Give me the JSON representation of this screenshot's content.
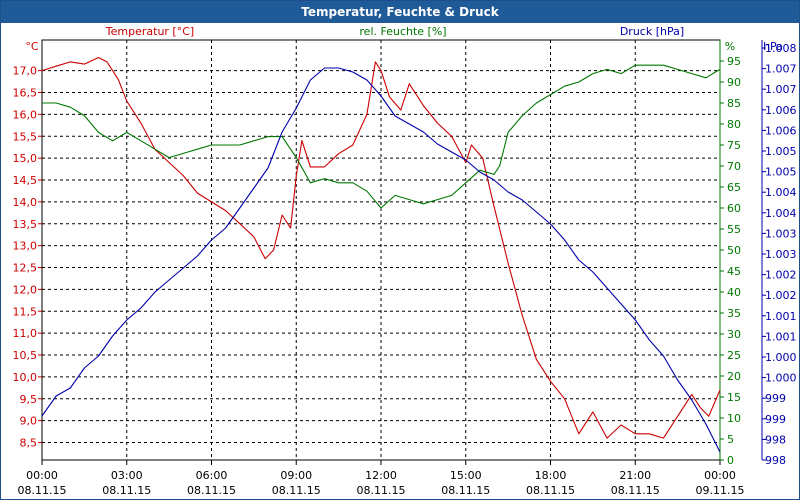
{
  "window": {
    "title": "Temperatur, Feuchte & Druck"
  },
  "colors": {
    "temperature": "#cc0000",
    "humidity": "#007700",
    "pressure": "#0000aa",
    "titlebar": "#1f5a99"
  },
  "chart_data": {
    "type": "line",
    "title": "Temperatur, Feuchte & Druck",
    "x_ticks": [
      {
        "time": "00:00",
        "date": "08.11.15"
      },
      {
        "time": "03:00",
        "date": "08.11.15"
      },
      {
        "time": "06:00",
        "date": "08.11.15"
      },
      {
        "time": "09:00",
        "date": "08.11.15"
      },
      {
        "time": "12:00",
        "date": "08.11.15"
      },
      {
        "time": "15:00",
        "date": "08.11.15"
      },
      {
        "time": "18:00",
        "date": "08.11.15"
      },
      {
        "time": "21:00",
        "date": "08.11.15"
      },
      {
        "time": "00:00",
        "date": "09.11.15"
      }
    ],
    "xlim_hours": [
      0,
      24
    ],
    "axes": {
      "temperature": {
        "label": "Temperatur [°C]",
        "unit": "°C",
        "range": [
          8.1,
          17.7
        ],
        "ticks": [
          "17,0",
          "16,5",
          "16,0",
          "15,5",
          "15,0",
          "14,5",
          "14,0",
          "13,5",
          "13,0",
          "12,5",
          "12,0",
          "11,5",
          "11,0",
          "10,5",
          "10,0",
          "9,5",
          "9,0",
          "8,5"
        ]
      },
      "humidity": {
        "label": "rel. Feuchte [%]",
        "unit": "%",
        "range": [
          0,
          100
        ],
        "ticks": [
          "95",
          "90",
          "85",
          "80",
          "75",
          "70",
          "65",
          "60",
          "55",
          "50",
          "45",
          "40",
          "35",
          "30",
          "25",
          "20",
          "15",
          "10",
          "5",
          "0"
        ]
      },
      "pressure": {
        "label": "Druck [hPa]",
        "unit": "hPa",
        "range": [
          997.8,
          1008.3
        ],
        "ticks": [
          "1.008",
          "1.007",
          "1.007",
          "1.006",
          "1.006",
          "1.005",
          "1.005",
          "1.004",
          "1.004",
          "1.003",
          "1.003",
          "1.002",
          "1.002",
          "1.001",
          "1.001",
          "1.000",
          "1.000",
          "999",
          "999",
          "998",
          "998"
        ]
      }
    },
    "series": [
      {
        "name": "Temperatur [°C]",
        "axis": "temperature",
        "x": [
          0,
          0.5,
          1,
          1.5,
          2,
          2.3,
          2.7,
          3,
          3.5,
          4,
          4.5,
          5,
          5.5,
          6,
          6.5,
          7,
          7.5,
          7.9,
          8.2,
          8.5,
          8.8,
          9,
          9.2,
          9.5,
          10,
          10.5,
          11,
          11.5,
          11.8,
          12,
          12.3,
          12.7,
          13,
          13.5,
          14,
          14.5,
          15,
          15.2,
          15.6,
          16,
          16.5,
          17,
          17.5,
          18,
          18.5,
          19,
          19.5,
          20,
          20.5,
          21,
          21.5,
          22,
          22.5,
          23,
          23.3,
          23.6,
          24
        ],
        "values": [
          17.0,
          17.1,
          17.2,
          17.15,
          17.3,
          17.2,
          16.8,
          16.3,
          15.8,
          15.2,
          14.9,
          14.6,
          14.2,
          14.0,
          13.8,
          13.5,
          13.2,
          12.7,
          12.9,
          13.7,
          13.4,
          14.6,
          15.4,
          14.8,
          14.8,
          15.1,
          15.3,
          16.0,
          17.2,
          17.0,
          16.4,
          16.1,
          16.7,
          16.2,
          15.8,
          15.5,
          14.9,
          15.3,
          15.0,
          13.9,
          12.6,
          11.4,
          10.4,
          9.9,
          9.5,
          8.7,
          9.2,
          8.6,
          8.9,
          8.7,
          8.7,
          8.6,
          9.1,
          9.6,
          9.3,
          9.1,
          9.7
        ]
      },
      {
        "name": "rel. Feuchte [%]",
        "axis": "humidity",
        "x": [
          0,
          0.5,
          1,
          1.5,
          2,
          2.5,
          3,
          3.5,
          4,
          4.5,
          5,
          5.5,
          6,
          6.5,
          7,
          7.5,
          8,
          8.5,
          9,
          9.5,
          10,
          10.5,
          11,
          11.5,
          12,
          12.5,
          13,
          13.5,
          14,
          14.5,
          15,
          15.5,
          16,
          16.2,
          16.5,
          17,
          17.5,
          18,
          18.5,
          19,
          19.5,
          20,
          20.5,
          21,
          21.5,
          22,
          22.5,
          23,
          23.5,
          24
        ],
        "values": [
          85,
          85,
          84,
          82,
          78,
          76,
          78,
          76,
          74,
          72,
          73,
          74,
          75,
          75,
          75,
          76,
          77,
          77,
          72,
          66,
          67,
          66,
          66,
          64,
          60,
          63,
          62,
          61,
          62,
          63,
          66,
          69,
          68,
          70,
          78,
          82,
          85,
          87,
          89,
          90,
          92,
          93,
          92,
          94,
          94,
          94,
          93,
          92,
          91,
          93
        ]
      },
      {
        "name": "Druck [hPa]",
        "axis": "pressure",
        "x": [
          0,
          0.5,
          1,
          1.5,
          2,
          2.5,
          3,
          3.5,
          4,
          4.5,
          5,
          5.5,
          6,
          6.5,
          7,
          7.5,
          8,
          8.5,
          9,
          9.5,
          10,
          10.5,
          11,
          11.5,
          12,
          12.5,
          13,
          13.5,
          14,
          14.5,
          15,
          15.5,
          16,
          16.5,
          17,
          17.5,
          18,
          18.5,
          19,
          19.5,
          20,
          20.5,
          21,
          21.5,
          22,
          22.5,
          23,
          23.5,
          24
        ],
        "values": [
          998.9,
          999.4,
          999.6,
          1000.1,
          1000.4,
          1000.9,
          1001.3,
          1001.6,
          1002.0,
          1002.3,
          1002.6,
          1002.9,
          1003.3,
          1003.6,
          1004.1,
          1004.6,
          1005.1,
          1006.0,
          1006.6,
          1007.3,
          1007.6,
          1007.6,
          1007.5,
          1007.3,
          1006.9,
          1006.4,
          1006.2,
          1006.0,
          1005.7,
          1005.5,
          1005.3,
          1005.0,
          1004.8,
          1004.5,
          1004.3,
          1004.0,
          1003.7,
          1003.3,
          1002.8,
          1002.5,
          1002.1,
          1001.7,
          1001.3,
          1000.8,
          1000.4,
          999.8,
          999.3,
          998.7,
          998.0
        ]
      }
    ]
  }
}
